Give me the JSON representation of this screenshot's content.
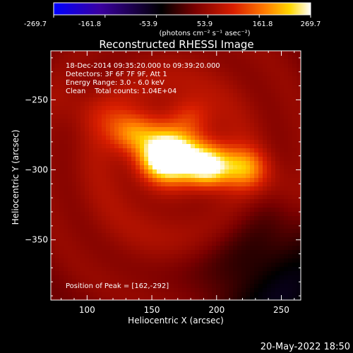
{
  "colors": {
    "background": "#000000",
    "text": "#ffffff",
    "colormap": [
      "#0000ff",
      "#3a00a0",
      "#000000",
      "#7a0000",
      "#d81e00",
      "#ff7a00",
      "#ffd800",
      "#ffffff"
    ]
  },
  "colorbar": {
    "ticks": [
      "-269.7",
      "-161.8",
      "-53.9",
      "53.9",
      "161.8",
      "269.7"
    ],
    "units_label": "(photons cm⁻² s⁻¹ asec⁻²)",
    "range": [
      -269.7,
      269.7
    ]
  },
  "chart_data": {
    "type": "heatmap",
    "title": "Reconstructed RHESSI Image",
    "xlabel": "Heliocentric X (arcsec)",
    "ylabel": "Heliocentric Y (arcsec)",
    "xlim": [
      72,
      265
    ],
    "ylim": [
      -393,
      -215
    ],
    "xticks": [
      100,
      150,
      200,
      250
    ],
    "yticks": [
      -250,
      -300,
      -350
    ],
    "annotations": [
      "18-Dec-2014 09:35:20.000 to 09:39:20.000",
      "Detectors: 3F 6F 7F 9F, Att 1",
      "Energy Range: 3.0 - 6.0 keV",
      "Clean    Total counts: 1.04E+04"
    ],
    "peak_label": "Position of Peak = [162,-292]",
    "sources": [
      {
        "x": 162,
        "y": -292,
        "peak": 269.7
      },
      {
        "x": 193,
        "y": -298,
        "peak": 190
      },
      {
        "x": 222,
        "y": -298,
        "peak": 95
      },
      {
        "x": 135,
        "y": -275,
        "peak": 85
      },
      {
        "x": 180,
        "y": -262,
        "peak": 60
      }
    ],
    "background_level": 75
  },
  "footer": {
    "date": "20-May-2022 18:50"
  }
}
